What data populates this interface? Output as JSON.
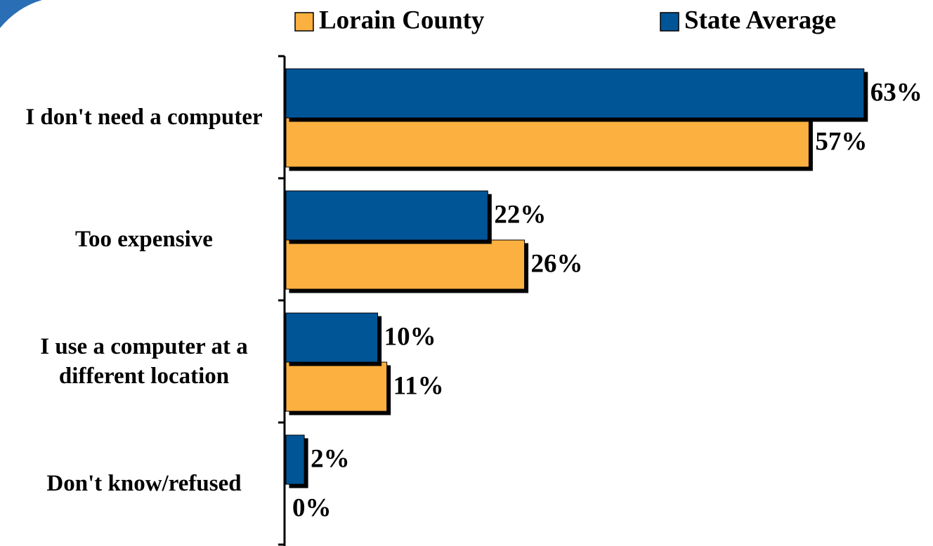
{
  "chart_data": {
    "type": "bar",
    "orientation": "horizontal",
    "categories": [
      "I don't need a computer",
      "Too expensive",
      "I use a computer at a different location",
      "Don't know/refused"
    ],
    "series": [
      {
        "name": "Lorain County",
        "color": "#fbb040",
        "values": [
          57,
          26,
          11,
          0
        ],
        "value_labels": [
          "57%",
          "26%",
          "11%",
          "0%"
        ]
      },
      {
        "name": "State Average",
        "color": "#005597",
        "values": [
          63,
          22,
          10,
          2
        ],
        "value_labels": [
          "63%",
          "22%",
          "10%",
          "2%"
        ]
      }
    ],
    "xlim": [
      0,
      70
    ],
    "legend": "top"
  }
}
